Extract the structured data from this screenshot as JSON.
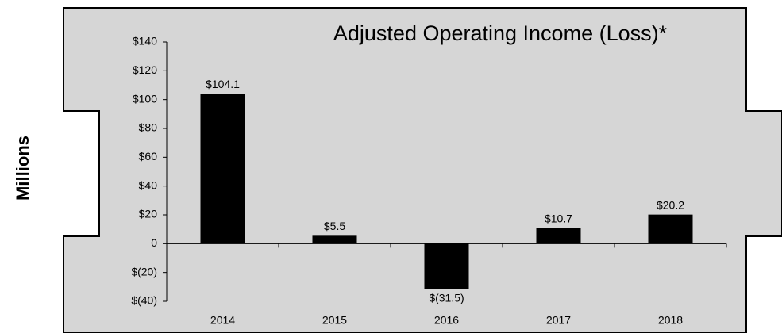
{
  "chart_data": {
    "type": "bar",
    "title": "Adjusted Operating Income (Loss)*",
    "y_label": "Millions",
    "categories": [
      "2014",
      "2015",
      "2016",
      "2017",
      "2018"
    ],
    "values": [
      104.1,
      5.5,
      -31.5,
      10.7,
      20.2
    ],
    "value_labels": [
      "$104.1",
      "$5.5",
      "$(31.5)",
      "$10.7",
      "$20.2"
    ],
    "color": "#000000",
    "ylim": [
      -40,
      140
    ],
    "yticks": [
      {
        "value": -40,
        "label": "$(40)"
      },
      {
        "value": -20,
        "label": "$(20)"
      },
      0,
      {
        "value": 20,
        "label": "$20"
      },
      {
        "value": 40,
        "label": "$40"
      },
      {
        "value": 60,
        "label": "$60"
      },
      {
        "value": 80,
        "label": "$80"
      },
      {
        "value": 100,
        "label": "$100"
      },
      {
        "value": 120,
        "label": "$120"
      },
      {
        "value": 140,
        "label": "$140"
      }
    ],
    "grid": false
  }
}
